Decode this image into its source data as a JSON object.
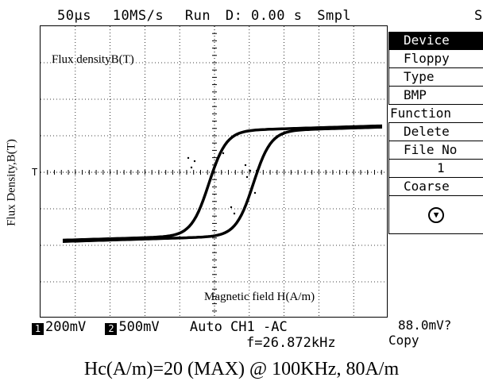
{
  "status_bar": {
    "timebase": "50µs",
    "sample_rate": "10MS/s",
    "run_state": "Run",
    "delay": "D: 0.00 s",
    "mode": "Smpl",
    "tail": "S"
  },
  "y_axis_label": "Flux Density,B(T)",
  "plot": {
    "annotation_flux": "Flux densityB(T)",
    "annotation_field": "Magnetic field H(A/m)",
    "trigger_marker": "T",
    "grid_divisions_x": 10,
    "grid_divisions_y": 8,
    "trace_color": "#000000"
  },
  "menu": {
    "device_label": "Device",
    "device_value": "Floppy",
    "type_label": "Type",
    "type_value": "BMP",
    "function_label": "Function",
    "function_value": "Delete",
    "fileno_label": "File No",
    "fileno_value": "1",
    "adjust_label": "Coarse",
    "down_icon": "down-arrow-circle-icon",
    "readout_value": "88.0mV?",
    "copy_label": "Copy"
  },
  "channels": {
    "ch1_tag": "1",
    "ch1_scale": "200mV",
    "ch2_tag": "2",
    "ch2_scale": "500mV",
    "trigger": "Auto CH1 -AC",
    "frequency": "f=26.872kHz"
  },
  "caption": "Hc(A/m)=20  (MAX)  @   100KHz, 80A/m"
}
